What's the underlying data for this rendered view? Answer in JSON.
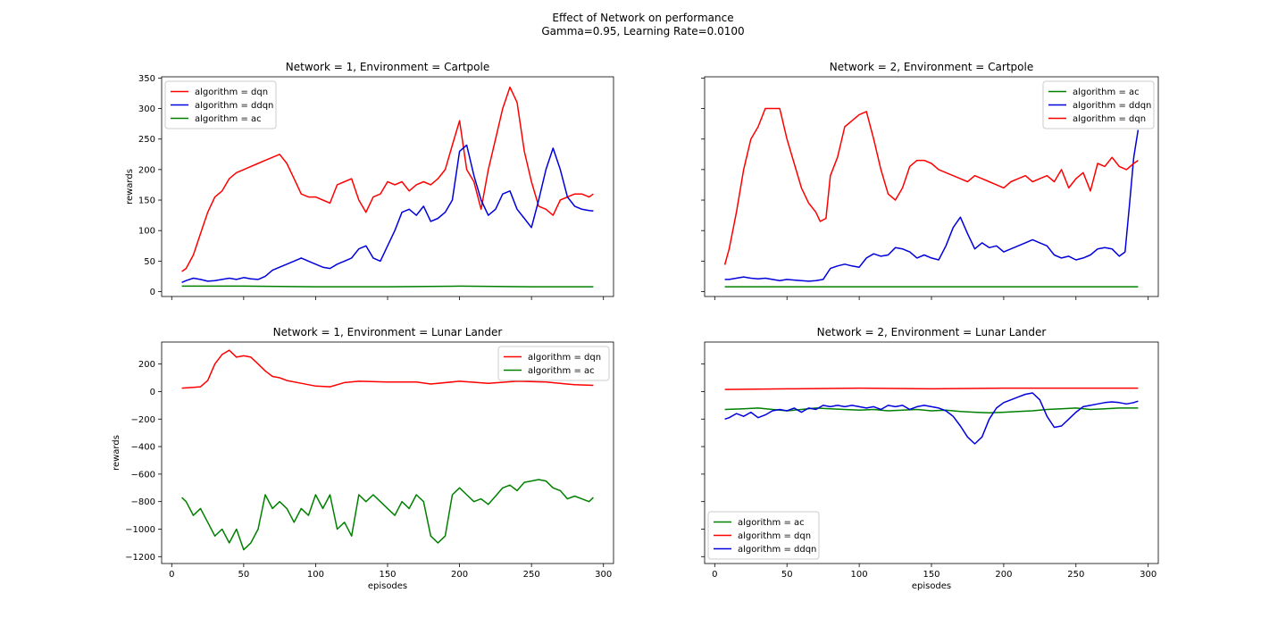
{
  "figure": {
    "title_line1": "Effect of Network on performance",
    "title_line2": "Gamma=0.95, Learning Rate=0.0100"
  },
  "chart_data": [
    {
      "type": "line",
      "title": "Network = 1, Environment = Cartpole",
      "xlabel": "",
      "ylabel": "rewards",
      "xlim": [
        -7,
        307
      ],
      "ylim": [
        -8,
        352
      ],
      "xticks": [
        0,
        50,
        100,
        150,
        200,
        250,
        300
      ],
      "yticks": [
        0,
        50,
        100,
        150,
        200,
        250,
        300,
        350
      ],
      "show_x_ticklabels": false,
      "show_y_ticklabels": true,
      "grid": false,
      "legend_position": "upper-left",
      "series": [
        {
          "name": "algorithm = dqn",
          "color": "#ff0000",
          "x": [
            7,
            10,
            15,
            20,
            25,
            30,
            35,
            40,
            45,
            50,
            55,
            60,
            65,
            70,
            75,
            80,
            85,
            90,
            95,
            100,
            105,
            110,
            115,
            120,
            125,
            130,
            135,
            140,
            145,
            150,
            155,
            160,
            165,
            170,
            175,
            180,
            185,
            190,
            195,
            200,
            205,
            210,
            215,
            220,
            225,
            230,
            235,
            240,
            245,
            250,
            255,
            260,
            265,
            270,
            275,
            280,
            285,
            290,
            293
          ],
          "y": [
            33,
            38,
            60,
            95,
            130,
            155,
            165,
            185,
            195,
            200,
            205,
            210,
            215,
            220,
            225,
            210,
            185,
            160,
            155,
            155,
            150,
            145,
            175,
            180,
            185,
            150,
            130,
            155,
            160,
            180,
            175,
            180,
            165,
            175,
            180,
            175,
            185,
            200,
            240,
            280,
            200,
            180,
            135,
            200,
            250,
            300,
            335,
            310,
            230,
            180,
            140,
            135,
            125,
            150,
            155,
            160,
            160,
            155,
            160
          ]
        },
        {
          "name": "algorithm = ddqn",
          "color": "#0000dd",
          "x": [
            7,
            10,
            15,
            20,
            25,
            30,
            35,
            40,
            45,
            50,
            55,
            60,
            65,
            70,
            75,
            80,
            85,
            90,
            95,
            100,
            105,
            110,
            115,
            120,
            125,
            130,
            135,
            140,
            145,
            150,
            155,
            160,
            165,
            170,
            175,
            180,
            185,
            190,
            195,
            200,
            205,
            210,
            215,
            220,
            225,
            230,
            235,
            240,
            245,
            250,
            255,
            260,
            265,
            270,
            275,
            280,
            285,
            290,
            293
          ],
          "y": [
            15,
            18,
            22,
            20,
            17,
            18,
            20,
            22,
            20,
            23,
            21,
            20,
            25,
            35,
            40,
            45,
            50,
            55,
            50,
            45,
            40,
            38,
            45,
            50,
            55,
            70,
            75,
            55,
            50,
            75,
            100,
            130,
            135,
            125,
            140,
            115,
            120,
            130,
            150,
            230,
            240,
            190,
            150,
            125,
            135,
            160,
            165,
            135,
            120,
            105,
            150,
            200,
            235,
            200,
            155,
            140,
            135,
            133,
            132
          ]
        },
        {
          "name": "algorithm = ac",
          "color": "#008000",
          "x": [
            7,
            50,
            100,
            150,
            200,
            250,
            293
          ],
          "y": [
            9,
            9,
            8,
            8,
            9,
            8,
            8
          ]
        }
      ]
    },
    {
      "type": "line",
      "title": "Network = 2, Environment = Cartpole",
      "xlabel": "",
      "ylabel": "",
      "xlim": [
        -7,
        307
      ],
      "ylim": [
        -8,
        352
      ],
      "xticks": [
        0,
        50,
        100,
        150,
        200,
        250,
        300
      ],
      "yticks": [
        0,
        50,
        100,
        150,
        200,
        250,
        300,
        350
      ],
      "show_x_ticklabels": false,
      "show_y_ticklabels": false,
      "grid": false,
      "legend_position": "upper-right",
      "series": [
        {
          "name": "algorithm = ac",
          "color": "#008000",
          "x": [
            7,
            50,
            100,
            150,
            200,
            250,
            293
          ],
          "y": [
            8,
            8,
            8,
            8,
            8,
            8,
            8
          ]
        },
        {
          "name": "algorithm = ddqn",
          "color": "#0000dd",
          "x": [
            7,
            10,
            15,
            20,
            25,
            30,
            35,
            40,
            45,
            50,
            55,
            60,
            65,
            70,
            75,
            80,
            85,
            90,
            95,
            100,
            105,
            110,
            115,
            120,
            125,
            130,
            135,
            140,
            145,
            150,
            155,
            160,
            165,
            170,
            175,
            180,
            185,
            190,
            195,
            200,
            205,
            210,
            215,
            220,
            225,
            230,
            235,
            240,
            245,
            250,
            255,
            260,
            265,
            270,
            275,
            280,
            284,
            287,
            290,
            293
          ],
          "y": [
            20,
            20,
            22,
            24,
            22,
            21,
            22,
            20,
            18,
            20,
            19,
            18,
            17,
            18,
            20,
            38,
            42,
            45,
            42,
            40,
            55,
            62,
            58,
            60,
            72,
            70,
            65,
            55,
            60,
            55,
            52,
            75,
            105,
            122,
            95,
            70,
            80,
            72,
            75,
            65,
            70,
            75,
            80,
            85,
            80,
            75,
            60,
            55,
            58,
            52,
            55,
            60,
            70,
            72,
            70,
            58,
            65,
            140,
            220,
            265
          ]
        },
        {
          "name": "algorithm = dqn",
          "color": "#ff0000",
          "x": [
            7,
            10,
            15,
            20,
            25,
            30,
            35,
            40,
            45,
            50,
            55,
            60,
            65,
            70,
            73,
            77,
            80,
            85,
            90,
            95,
            100,
            105,
            110,
            115,
            120,
            125,
            130,
            135,
            140,
            145,
            150,
            155,
            160,
            165,
            170,
            175,
            180,
            185,
            190,
            195,
            200,
            205,
            210,
            215,
            220,
            225,
            230,
            235,
            240,
            245,
            250,
            255,
            260,
            265,
            270,
            275,
            280,
            285,
            290,
            293
          ],
          "y": [
            44,
            70,
            130,
            200,
            250,
            270,
            300,
            300,
            300,
            250,
            210,
            170,
            145,
            130,
            115,
            120,
            190,
            220,
            270,
            280,
            290,
            295,
            250,
            200,
            160,
            150,
            170,
            205,
            215,
            215,
            210,
            200,
            195,
            190,
            185,
            180,
            190,
            185,
            180,
            175,
            170,
            180,
            185,
            190,
            180,
            185,
            190,
            180,
            200,
            170,
            185,
            195,
            165,
            210,
            205,
            220,
            205,
            200,
            210,
            215
          ]
        }
      ]
    },
    {
      "type": "line",
      "title": "Network = 1, Environment = Lunar Lander",
      "xlabel": "episodes",
      "ylabel": "rewards",
      "xlim": [
        -7,
        307
      ],
      "ylim": [
        -1250,
        360
      ],
      "xticks": [
        0,
        50,
        100,
        150,
        200,
        250,
        300
      ],
      "yticks": [
        -1200,
        -1000,
        -800,
        -600,
        -400,
        -200,
        0,
        200
      ],
      "show_x_ticklabels": true,
      "show_y_ticklabels": true,
      "grid": false,
      "legend_position": "upper-right",
      "series": [
        {
          "name": "algorithm = dqn",
          "color": "#ff0000",
          "x": [
            7,
            15,
            20,
            25,
            30,
            35,
            40,
            45,
            50,
            55,
            60,
            65,
            70,
            75,
            80,
            90,
            100,
            110,
            120,
            130,
            150,
            170,
            180,
            200,
            220,
            240,
            260,
            280,
            293
          ],
          "y": [
            25,
            30,
            35,
            80,
            200,
            270,
            300,
            250,
            260,
            250,
            200,
            150,
            110,
            100,
            80,
            60,
            40,
            35,
            65,
            75,
            70,
            70,
            55,
            75,
            60,
            75,
            70,
            50,
            45
          ]
        },
        {
          "name": "algorithm = ac",
          "color": "#008000",
          "x": [
            7,
            10,
            15,
            20,
            25,
            30,
            35,
            40,
            45,
            50,
            55,
            60,
            65,
            70,
            75,
            80,
            85,
            90,
            95,
            100,
            105,
            110,
            115,
            120,
            125,
            130,
            135,
            140,
            145,
            150,
            155,
            160,
            165,
            170,
            175,
            180,
            185,
            190,
            195,
            200,
            205,
            210,
            215,
            220,
            225,
            230,
            235,
            240,
            245,
            250,
            255,
            260,
            265,
            270,
            275,
            280,
            285,
            290,
            293
          ],
          "y": [
            -770,
            -800,
            -900,
            -850,
            -950,
            -1050,
            -1000,
            -1100,
            -1000,
            -1150,
            -1100,
            -1000,
            -750,
            -850,
            -800,
            -850,
            -950,
            -850,
            -900,
            -750,
            -850,
            -750,
            -1000,
            -950,
            -1050,
            -750,
            -800,
            -750,
            -800,
            -850,
            -900,
            -800,
            -850,
            -750,
            -800,
            -1050,
            -1100,
            -1050,
            -750,
            -700,
            -750,
            -800,
            -780,
            -820,
            -760,
            -700,
            -680,
            -720,
            -660,
            -650,
            -640,
            -650,
            -700,
            -720,
            -780,
            -760,
            -780,
            -800,
            -770
          ]
        }
      ]
    },
    {
      "type": "line",
      "title": "Network = 2, Environment = Lunar Lander",
      "xlabel": "episodes",
      "ylabel": "",
      "xlim": [
        -7,
        307
      ],
      "ylim": [
        -1250,
        360
      ],
      "xticks": [
        0,
        50,
        100,
        150,
        200,
        250,
        300
      ],
      "yticks": [
        -1200,
        -1000,
        -800,
        -600,
        -400,
        -200,
        0,
        200
      ],
      "show_x_ticklabels": true,
      "show_y_ticklabels": false,
      "grid": false,
      "legend_position": "lower-left",
      "series": [
        {
          "name": "algorithm = ac",
          "color": "#008000",
          "x": [
            7,
            20,
            30,
            40,
            50,
            60,
            70,
            80,
            90,
            100,
            110,
            120,
            130,
            140,
            150,
            160,
            170,
            180,
            190,
            200,
            210,
            220,
            230,
            240,
            250,
            260,
            270,
            280,
            293
          ],
          "y": [
            -130,
            -125,
            -120,
            -130,
            -140,
            -130,
            -120,
            -125,
            -130,
            -135,
            -130,
            -140,
            -135,
            -130,
            -140,
            -135,
            -145,
            -150,
            -155,
            -150,
            -145,
            -140,
            -130,
            -125,
            -120,
            -130,
            -125,
            -120,
            -120
          ]
        },
        {
          "name": "algorithm = dqn",
          "color": "#ff0000",
          "x": [
            7,
            50,
            100,
            150,
            200,
            250,
            293
          ],
          "y": [
            15,
            20,
            25,
            20,
            25,
            25,
            25
          ]
        },
        {
          "name": "algorithm = ddqn",
          "color": "#0000dd",
          "x": [
            7,
            10,
            15,
            20,
            25,
            30,
            35,
            40,
            45,
            50,
            55,
            60,
            65,
            70,
            75,
            80,
            85,
            90,
            95,
            100,
            105,
            110,
            115,
            120,
            125,
            130,
            135,
            140,
            145,
            150,
            155,
            160,
            165,
            170,
            175,
            180,
            185,
            190,
            195,
            200,
            205,
            210,
            215,
            220,
            225,
            230,
            235,
            240,
            245,
            250,
            255,
            260,
            265,
            270,
            275,
            280,
            285,
            290,
            293
          ],
          "y": [
            -200,
            -190,
            -160,
            -180,
            -150,
            -190,
            -170,
            -140,
            -130,
            -140,
            -120,
            -150,
            -120,
            -130,
            -100,
            -110,
            -100,
            -110,
            -100,
            -110,
            -120,
            -110,
            -130,
            -100,
            -110,
            -100,
            -130,
            -110,
            -100,
            -110,
            -120,
            -140,
            -180,
            -250,
            -330,
            -380,
            -330,
            -200,
            -120,
            -80,
            -60,
            -40,
            -20,
            -10,
            -60,
            -180,
            -260,
            -250,
            -200,
            -150,
            -110,
            -100,
            -90,
            -80,
            -75,
            -80,
            -90,
            -80,
            -70
          ]
        }
      ]
    }
  ]
}
